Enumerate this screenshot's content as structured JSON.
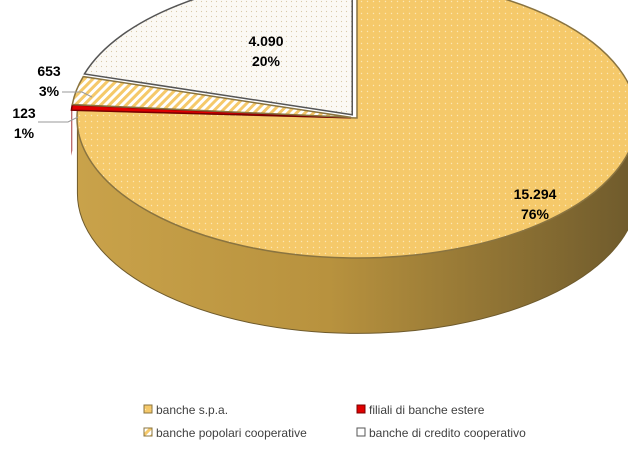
{
  "chart_data": {
    "type": "pie",
    "title": "",
    "three_d": true,
    "legend_position": "bottom",
    "slices": [
      {
        "label": "banche s.p.a.",
        "value": 15294,
        "value_text": "15.294",
        "percent_text": "76%",
        "color": "#F5C96A",
        "pattern": "dotted"
      },
      {
        "label": "filiali di banche estere",
        "value": 123,
        "value_text": "123",
        "percent_text": "1%",
        "color": "#E00000",
        "pattern": "solid"
      },
      {
        "label": "banche popolari cooperative",
        "value": 653,
        "value_text": "653",
        "percent_text": "3%",
        "color": "#F5C96A",
        "pattern": "diagonal-stripes"
      },
      {
        "label": "banche di credito cooperativo",
        "value": 4090,
        "value_text": "4.090",
        "percent_text": "20%",
        "color": "#F8F5EE",
        "pattern": "dotted"
      }
    ]
  }
}
